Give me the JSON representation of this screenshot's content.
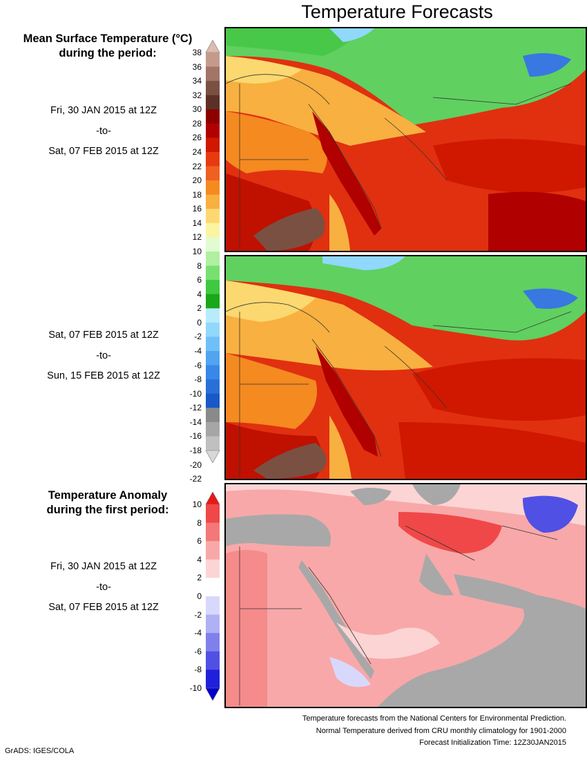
{
  "title": "Temperature Forecasts",
  "mean_heading": [
    "Mean Surface Temperature (°C)",
    "during the period:"
  ],
  "periods": [
    {
      "start": "Fri, 30 JAN 2015 at 12Z",
      "sep": "-to-",
      "end": "Sat, 07 FEB 2015 at 12Z"
    },
    {
      "start": "Sat, 07 FEB 2015 at 12Z",
      "sep": "-to-",
      "end": "Sun, 15 FEB 2015 at 12Z"
    }
  ],
  "anomaly_heading": [
    "Temperature Anomaly",
    "during the first period:"
  ],
  "anomaly_period": {
    "start": "Fri, 30 JAN 2015 at 12Z",
    "sep": "-to-",
    "end": "Sat, 07 FEB 2015 at 12Z"
  },
  "temp_colorbar": {
    "labels": [
      "38",
      "36",
      "34",
      "32",
      "30",
      "28",
      "26",
      "24",
      "22",
      "20",
      "18",
      "16",
      "14",
      "12",
      "10",
      "8",
      "6",
      "4",
      "2",
      "0",
      "-2",
      "-4",
      "-6",
      "-8",
      "-10",
      "-12",
      "-14",
      "-16",
      "-18",
      "-20",
      "-22"
    ],
    "colors": [
      "#dcbcb0",
      "#c49a8c",
      "#a47466",
      "#7a5042",
      "#5c3026",
      "#8c0000",
      "#b00000",
      "#d01800",
      "#e83a10",
      "#f06020",
      "#f48a20",
      "#f8b040",
      "#fcd870",
      "#fcf4a0",
      "#e0fcd0",
      "#b0f0a0",
      "#78e070",
      "#40c840",
      "#18a818",
      "#b8ecfc",
      "#90d8fc",
      "#70c0f8",
      "#50a4f0",
      "#3888e8",
      "#2870d8",
      "#1858c8",
      "#8a8a8a",
      "#a6a6a6",
      "#c0c0c0",
      "#d8d8d8"
    ]
  },
  "anom_colorbar": {
    "labels": [
      "10",
      "8",
      "6",
      "4",
      "2",
      "0",
      "-2",
      "-4",
      "-6",
      "-8",
      "-10"
    ],
    "colors": [
      "#e81818",
      "#f04848",
      "#f47878",
      "#f8a8a8",
      "#fcd4d4",
      "#ffffff",
      "#d8d8fc",
      "#b0b0f4",
      "#8080ec",
      "#5050e4",
      "#2020dc",
      "#0000c8"
    ]
  },
  "footer": [
    "Temperature forecasts from the National Centers for Environmental Prediction.",
    "Normal Temperature derived from CRU monthly climatology for 1901-2000",
    "Forecast Initialization Time: 12Z30JAN2015"
  ],
  "credit": "GrADS: IGES/COLA"
}
